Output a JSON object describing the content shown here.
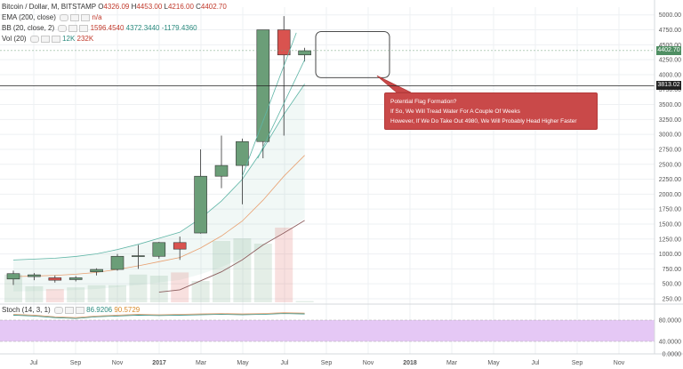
{
  "header": {
    "symbol": "Bitcoin / Dollar, M, BITSTAMP",
    "open_label": "O",
    "open": "4326.09",
    "high_label": "H",
    "high": "4453.00",
    "low_label": "L",
    "low": "4216.00",
    "close_label": "C",
    "close": "4402.70"
  },
  "indicators": {
    "ema": {
      "label": "EMA (200, close)",
      "value": "n/a"
    },
    "bb": {
      "label": "BB (20, close, 2)",
      "v1": "1596.4540",
      "v2": "4372.3440",
      "v3": "-1179.4360"
    },
    "vol": {
      "label": "Vol (20)",
      "v1": "12K",
      "v2": "232K"
    },
    "stoch": {
      "label": "Stoch (14, 3, 1)",
      "v1": "86.9206",
      "v2": "90.5729"
    }
  },
  "tags": {
    "price": "4402.70",
    "hline": "3813.02"
  },
  "callout": {
    "line1": "Potential Flag Formation?",
    "line2": "If So, We Will Tread Water For A Couple Of Weeks",
    "line3": "However, If We Do Take Out 4980, We Will Probably Head Higher Faster"
  },
  "colors": {
    "up": "#6b9e78",
    "down": "#d9534f",
    "bb": "#5fb5a6",
    "ema": "#8b5e5e",
    "stoch_fill": "#e5c8f5"
  },
  "chart_data": {
    "type": "candlestick",
    "price_ticks": [
      "5000.00",
      "4750.00",
      "4500.00",
      "4250.00",
      "4000.00",
      "3750.00",
      "3500.00",
      "3250.00",
      "3000.00",
      "2750.00",
      "2500.00",
      "2250.00",
      "2000.00",
      "1750.00",
      "1500.00",
      "1250.00",
      "1000.00",
      "750.00",
      "500.00",
      "250.00"
    ],
    "stoch_ticks": [
      "80.0000",
      "40.0000",
      "0.0000"
    ],
    "time_ticks": [
      "Jul",
      "Sep",
      "Nov",
      "2017",
      "Mar",
      "May",
      "Jul",
      "Sep",
      "Nov",
      "2018",
      "Mar",
      "May",
      "Jul",
      "Sep",
      "Nov"
    ],
    "candles": [
      {
        "o": 580,
        "h": 720,
        "l": 480,
        "c": 670
      },
      {
        "o": 620,
        "h": 680,
        "l": 560,
        "c": 650
      },
      {
        "o": 600,
        "h": 640,
        "l": 520,
        "c": 560
      },
      {
        "o": 570,
        "h": 630,
        "l": 540,
        "c": 600
      },
      {
        "o": 700,
        "h": 760,
        "l": 640,
        "c": 740
      },
      {
        "o": 740,
        "h": 1000,
        "l": 720,
        "c": 960
      },
      {
        "o": 960,
        "h": 1150,
        "l": 750,
        "c": 970
      },
      {
        "o": 960,
        "h": 1200,
        "l": 920,
        "c": 1190
      },
      {
        "o": 1190,
        "h": 1290,
        "l": 900,
        "c": 1080
      },
      {
        "o": 1350,
        "h": 2750,
        "l": 1340,
        "c": 2300
      },
      {
        "o": 2300,
        "h": 2980,
        "l": 2100,
        "c": 2480
      },
      {
        "o": 2480,
        "h": 2930,
        "l": 1830,
        "c": 2880
      },
      {
        "o": 2880,
        "h": 4750,
        "l": 2600,
        "c": 4750
      },
      {
        "o": 4750,
        "h": 4980,
        "l": 2980,
        "c": 4330
      },
      {
        "o": 4330,
        "h": 4450,
        "l": 4220,
        "c": 4400
      }
    ],
    "volume": [
      520,
      300,
      250,
      280,
      320,
      320,
      520,
      500,
      560,
      400,
      1150,
      1200,
      1100,
      1400,
      25
    ],
    "ema": [
      null,
      null,
      null,
      null,
      null,
      null,
      null,
      360,
      400,
      550,
      700,
      900,
      1150,
      1350,
      1560
    ],
    "bb_mid": [
      620,
      630,
      640,
      660,
      690,
      740,
      800,
      870,
      940,
      1100,
      1300,
      1550,
      1900,
      2300,
      2650
    ]
  }
}
